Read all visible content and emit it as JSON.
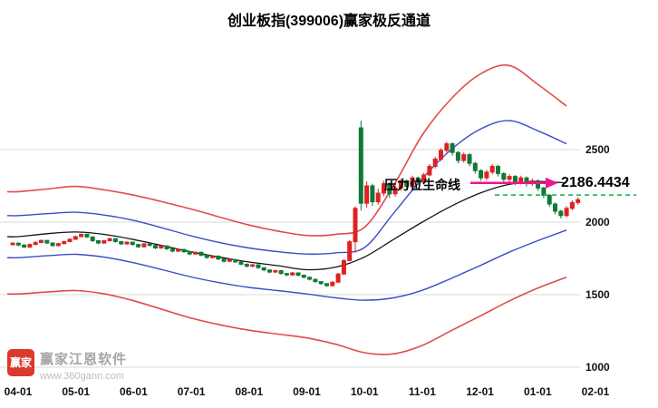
{
  "title": "创业板指(399006)赢家极反通道",
  "annotation": {
    "label": "压力位生命线",
    "price_text": "2186.4434"
  },
  "watermark": {
    "logo_text": "赢家",
    "brand": "赢家江恩软件",
    "url": "www.360gann.com"
  },
  "chart_data": {
    "type": "candlestick",
    "title": "创业板指(399006)赢家极反通道",
    "x_tick_labels": [
      "04-01",
      "05-01",
      "06-01",
      "07-01",
      "08-01",
      "09-01",
      "10-01",
      "11-01",
      "12-01",
      "01-01",
      "02-01"
    ],
    "y_tick_values": [
      2500,
      2000,
      1500,
      1000
    ],
    "ylim": [
      1000,
      3150
    ],
    "lifeline_value": 2186.4434,
    "pointer_level": 2270,
    "band_t_step": 0.5,
    "bands": {
      "red_upper": [
        2210,
        2228,
        2246,
        2222,
        2186,
        2140,
        2090,
        2034,
        1980,
        1938,
        1908,
        1916,
        1965,
        2250,
        2600,
        2850,
        3020,
        3080,
        2950,
        2800
      ],
      "blue_upper": [
        2045,
        2058,
        2068,
        2048,
        2012,
        1960,
        1905,
        1858,
        1822,
        1796,
        1780,
        1788,
        1825,
        2060,
        2300,
        2500,
        2640,
        2700,
        2630,
        2540
      ],
      "midline": [
        1900,
        1920,
        1932,
        1915,
        1880,
        1838,
        1795,
        1758,
        1725,
        1700,
        1672,
        1690,
        1760,
        1880,
        2000,
        2110,
        2200,
        2260,
        2280,
        2270
      ],
      "blue_lower": [
        1755,
        1768,
        1778,
        1758,
        1720,
        1672,
        1622,
        1582,
        1550,
        1528,
        1505,
        1478,
        1462,
        1478,
        1530,
        1612,
        1700,
        1792,
        1872,
        1945
      ],
      "red_lower": [
        1505,
        1518,
        1528,
        1505,
        1458,
        1398,
        1338,
        1292,
        1255,
        1228,
        1202,
        1158,
        1100,
        1092,
        1150,
        1252,
        1352,
        1455,
        1545,
        1620
      ]
    },
    "candles": [
      [
        1845,
        1855,
        1838,
        1862
      ],
      [
        1855,
        1842,
        1834,
        1860
      ],
      [
        1842,
        1828,
        1820,
        1848
      ],
      [
        1828,
        1846,
        1822,
        1852
      ],
      [
        1846,
        1860,
        1840,
        1868
      ],
      [
        1860,
        1874,
        1854,
        1880
      ],
      [
        1874,
        1856,
        1849,
        1878
      ],
      [
        1856,
        1838,
        1830,
        1861
      ],
      [
        1838,
        1852,
        1832,
        1858
      ],
      [
        1852,
        1866,
        1846,
        1872
      ],
      [
        1866,
        1882,
        1860,
        1890
      ],
      [
        1882,
        1900,
        1877,
        1908
      ],
      [
        1900,
        1916,
        1895,
        1922
      ],
      [
        1916,
        1898,
        1890,
        1920
      ],
      [
        1898,
        1872,
        1864,
        1902
      ],
      [
        1872,
        1856,
        1848,
        1876
      ],
      [
        1856,
        1872,
        1850,
        1878
      ],
      [
        1872,
        1886,
        1866,
        1892
      ],
      [
        1886,
        1866,
        1858,
        1890
      ],
      [
        1866,
        1850,
        1842,
        1870
      ],
      [
        1850,
        1862,
        1844,
        1868
      ],
      [
        1862,
        1846,
        1838,
        1866
      ],
      [
        1846,
        1830,
        1822,
        1850
      ],
      [
        1830,
        1850,
        1825,
        1856
      ],
      [
        1850,
        1840,
        1832,
        1856
      ],
      [
        1840,
        1822,
        1814,
        1844
      ],
      [
        1822,
        1836,
        1816,
        1842
      ],
      [
        1836,
        1816,
        1808,
        1840
      ],
      [
        1816,
        1800,
        1792,
        1820
      ],
      [
        1800,
        1812,
        1794,
        1818
      ],
      [
        1812,
        1796,
        1788,
        1816
      ],
      [
        1796,
        1780,
        1772,
        1800
      ],
      [
        1780,
        1792,
        1774,
        1798
      ],
      [
        1792,
        1772,
        1764,
        1796
      ],
      [
        1772,
        1756,
        1748,
        1776
      ],
      [
        1756,
        1766,
        1749,
        1772
      ],
      [
        1766,
        1746,
        1738,
        1770
      ],
      [
        1746,
        1730,
        1722,
        1750
      ],
      [
        1730,
        1742,
        1724,
        1748
      ],
      [
        1742,
        1726,
        1718,
        1746
      ],
      [
        1726,
        1710,
        1702,
        1730
      ],
      [
        1710,
        1696,
        1688,
        1714
      ],
      [
        1696,
        1706,
        1689,
        1712
      ],
      [
        1706,
        1686,
        1678,
        1710
      ],
      [
        1686,
        1670,
        1662,
        1690
      ],
      [
        1670,
        1656,
        1648,
        1674
      ],
      [
        1656,
        1666,
        1649,
        1672
      ],
      [
        1666,
        1646,
        1638,
        1670
      ],
      [
        1646,
        1636,
        1628,
        1650
      ],
      [
        1636,
        1650,
        1630,
        1656
      ],
      [
        1650,
        1634,
        1626,
        1654
      ],
      [
        1634,
        1620,
        1612,
        1638
      ],
      [
        1620,
        1606,
        1598,
        1624
      ],
      [
        1606,
        1590,
        1582,
        1610
      ],
      [
        1590,
        1576,
        1568,
        1594
      ],
      [
        1576,
        1562,
        1554,
        1580
      ],
      [
        1562,
        1586,
        1556,
        1592
      ],
      [
        1586,
        1642,
        1580,
        1650
      ],
      [
        1642,
        1735,
        1636,
        1745
      ],
      [
        1735,
        1865,
        1730,
        1876
      ],
      [
        1865,
        2095,
        1790,
        2110
      ],
      [
        2650,
        2130,
        2080,
        2700
      ],
      [
        2130,
        2250,
        2100,
        2280
      ],
      [
        2250,
        2140,
        2110,
        2265
      ],
      [
        2140,
        2200,
        2120,
        2230
      ],
      [
        2200,
        2265,
        2180,
        2285
      ],
      [
        2265,
        2195,
        2168,
        2275
      ],
      [
        2195,
        2235,
        2175,
        2255
      ],
      [
        2235,
        2285,
        2215,
        2300
      ],
      [
        2285,
        2245,
        2224,
        2295
      ],
      [
        2245,
        2305,
        2230,
        2320
      ],
      [
        2305,
        2275,
        2254,
        2315
      ],
      [
        2275,
        2325,
        2260,
        2340
      ],
      [
        2325,
        2385,
        2315,
        2400
      ],
      [
        2385,
        2435,
        2370,
        2450
      ],
      [
        2435,
        2495,
        2420,
        2510
      ],
      [
        2495,
        2540,
        2480,
        2555
      ],
      [
        2540,
        2480,
        2458,
        2550
      ],
      [
        2480,
        2425,
        2405,
        2490
      ],
      [
        2425,
        2465,
        2410,
        2480
      ],
      [
        2465,
        2405,
        2385,
        2475
      ],
      [
        2405,
        2355,
        2335,
        2415
      ],
      [
        2355,
        2305,
        2285,
        2365
      ],
      [
        2305,
        2345,
        2290,
        2360
      ],
      [
        2345,
        2385,
        2328,
        2400
      ],
      [
        2385,
        2335,
        2315,
        2395
      ],
      [
        2335,
        2295,
        2275,
        2345
      ],
      [
        2295,
        2315,
        2278,
        2330
      ],
      [
        2315,
        2275,
        2255,
        2325
      ],
      [
        2275,
        2305,
        2260,
        2320
      ],
      [
        2305,
        2265,
        2245,
        2315
      ],
      [
        2265,
        2285,
        2250,
        2300
      ],
      [
        2285,
        2235,
        2215,
        2295
      ],
      [
        2235,
        2185,
        2165,
        2245
      ],
      [
        2185,
        2125,
        2105,
        2195
      ],
      [
        2125,
        2075,
        2055,
        2135
      ],
      [
        2075,
        2045,
        2025,
        2085
      ],
      [
        2045,
        2095,
        2034,
        2110
      ],
      [
        2095,
        2135,
        2080,
        2150
      ],
      [
        2135,
        2155,
        2120,
        2170
      ]
    ],
    "colors": {
      "up": "#dd2222",
      "down": "#0e7a36",
      "band_red": "#e14b4b",
      "band_blue": "#3b4cc8",
      "midline": "#141414",
      "dashed_green": "#0faf4e",
      "arrow": "#f0148c",
      "grid": "#d9d9d9",
      "axis_text": "#111111"
    }
  }
}
